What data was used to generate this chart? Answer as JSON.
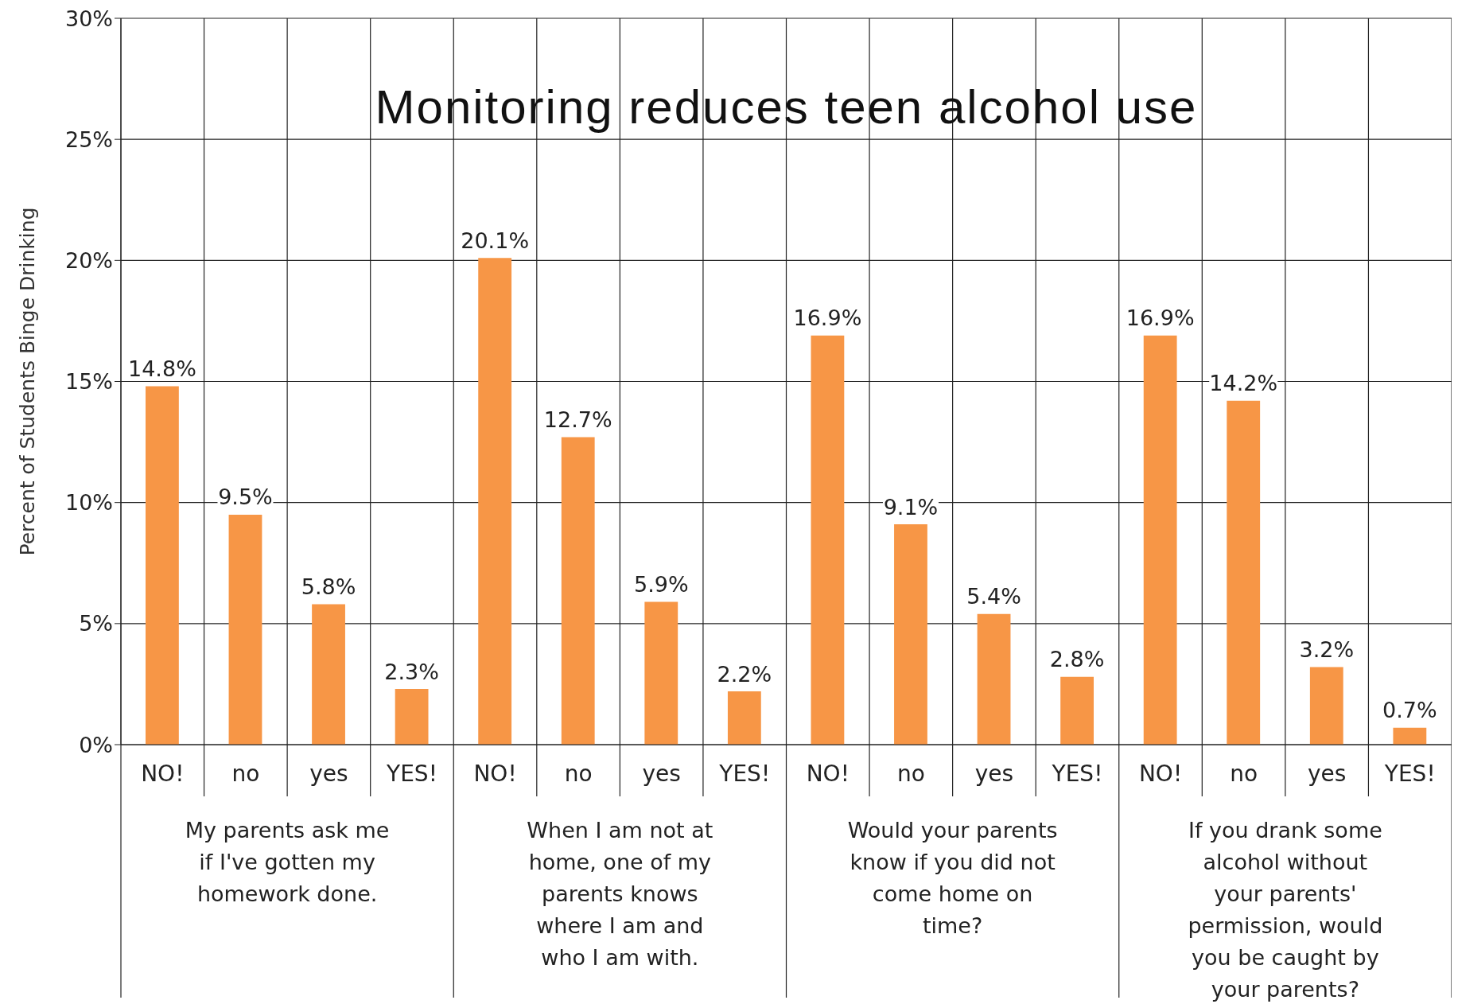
{
  "chart_data": {
    "type": "bar",
    "title": "Monitoring reduces teen alcohol use",
    "ylabel": "Percent of Students Binge Drinking",
    "categories": [
      "NO!",
      "no",
      "yes",
      "YES!",
      "NO!",
      "no",
      "yes",
      "YES!",
      "NO!",
      "no",
      "yes",
      "YES!",
      "NO!",
      "no",
      "yes",
      "YES!"
    ],
    "values": [
      14.8,
      9.5,
      5.8,
      2.3,
      20.1,
      12.7,
      5.9,
      2.2,
      16.9,
      9.1,
      5.4,
      2.8,
      16.9,
      14.2,
      3.2,
      0.7
    ],
    "value_labels": [
      "14.8%",
      "9.5%",
      "5.8%",
      "2.3%",
      "20.1%",
      "12.7%",
      "5.9%",
      "2.2%",
      "16.9%",
      "9.1%",
      "5.4%",
      "2.8%",
      "16.9%",
      "14.2%",
      "3.2%",
      "0.7%"
    ],
    "color": "#f79646",
    "ylim": [
      0,
      30
    ],
    "yticks": [
      {
        "value": 0,
        "label": "0%"
      },
      {
        "value": 5,
        "label": "5%"
      },
      {
        "value": 10,
        "label": "10%"
      },
      {
        "value": 15,
        "label": "15%"
      },
      {
        "value": 20,
        "label": "20%"
      },
      {
        "value": 25,
        "label": "25%"
      },
      {
        "value": 30,
        "label": "30%"
      }
    ],
    "grid": true,
    "legend": false,
    "annotations": [
      "My parents ask me if I've gotten my homework done.",
      "When I am not at home, one of my parents knows where I am and who I am with.",
      "Would your parents know if you did not come home on time?",
      "If you drank some alcohol without your parents' permission, would you be caught by your parents?"
    ]
  }
}
